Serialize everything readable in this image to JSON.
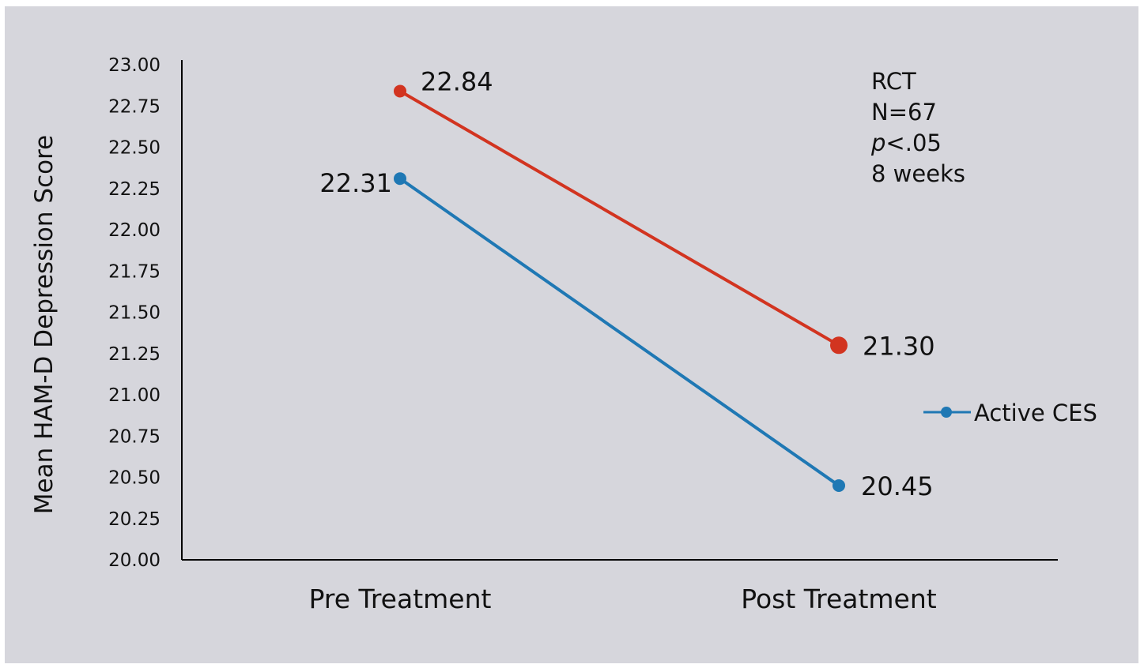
{
  "chart_data": {
    "type": "line",
    "title": "",
    "xlabel": "",
    "ylabel": "Mean HAM-D Depression  Score",
    "ylim": [
      20.0,
      23.0
    ],
    "yticks": [
      "20.00",
      "20.25",
      "20.50",
      "20.75",
      "21.00",
      "21.25",
      "21.50",
      "21.75",
      "22.00",
      "22.25",
      "22.50",
      "22.75",
      "23.00"
    ],
    "categories": [
      "Pre Treatment",
      "Post Treatment"
    ],
    "grid": false,
    "legend_position": "right",
    "series": [
      {
        "name": "",
        "color": "#d23420",
        "values": [
          22.84,
          21.3
        ],
        "labels": [
          "22.84",
          "21.30"
        ]
      },
      {
        "name": "Active CES",
        "color": "#1f78b4",
        "values": [
          22.31,
          20.45
        ],
        "labels": [
          "22.31",
          "20.45"
        ]
      }
    ],
    "annotations": [
      "RCT",
      "N=67",
      "p<.05",
      "8 weeks"
    ]
  }
}
